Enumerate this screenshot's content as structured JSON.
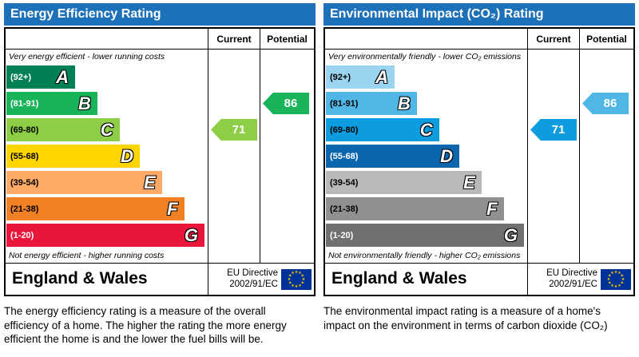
{
  "page": {
    "title_bar_color": "#1d71b8",
    "eu_flag": {
      "background": "#003399",
      "star_color": "#ffcc00"
    }
  },
  "chart_data": [
    {
      "type": "bar",
      "title": "Energy Efficiency Rating",
      "categories": [
        "A (92+)",
        "B (81-91)",
        "C (69-80)",
        "D (55-68)",
        "E (39-54)",
        "F (21-38)",
        "G (1-20)"
      ],
      "band_widths_pct": [
        34,
        45,
        56,
        66,
        77,
        88,
        98
      ],
      "current": 71,
      "current_band": "C",
      "potential": 86,
      "potential_band": "B",
      "legend_position": "columns-right",
      "grid": false
    },
    {
      "type": "bar",
      "title": "Environmental Impact (CO₂) Rating",
      "categories": [
        "A (92+)",
        "B (81-91)",
        "C (69-80)",
        "D (55-68)",
        "E (39-54)",
        "F (21-38)",
        "G (1-20)"
      ],
      "band_widths_pct": [
        34,
        45,
        56,
        66,
        77,
        88,
        98
      ],
      "current": 71,
      "current_band": "C",
      "potential": 86,
      "potential_band": "B",
      "legend_position": "columns-right",
      "grid": false
    }
  ],
  "panels": [
    {
      "id": "energy-efficiency",
      "title": "Energy Efficiency Rating",
      "columns": {
        "current": "Current",
        "potential": "Potential"
      },
      "top_caption": "Very energy efficient - lower running costs",
      "bottom_caption": "Not energy efficient - higher running costs",
      "bands": [
        {
          "range": "(92+)",
          "letter": "A",
          "color": "#008054",
          "width_pct": 34,
          "range_text_color": "#ffffff"
        },
        {
          "range": "(81-91)",
          "letter": "B",
          "color": "#19b459",
          "width_pct": 45,
          "range_text_color": "#ffffff"
        },
        {
          "range": "(69-80)",
          "letter": "C",
          "color": "#8dce46",
          "width_pct": 56,
          "range_text_color": "#000000"
        },
        {
          "range": "(55-68)",
          "letter": "D",
          "color": "#ffd500",
          "width_pct": 66,
          "range_text_color": "#000000"
        },
        {
          "range": "(39-54)",
          "letter": "E",
          "color": "#fcaa65",
          "width_pct": 77,
          "range_text_color": "#000000"
        },
        {
          "range": "(21-38)",
          "letter": "F",
          "color": "#ef8023",
          "width_pct": 88,
          "range_text_color": "#000000"
        },
        {
          "range": "(1-20)",
          "letter": "G",
          "color": "#e9153b",
          "width_pct": 98,
          "range_text_color": "#ffffff"
        }
      ],
      "current": {
        "value": "71",
        "band_index": 2,
        "color": "#8dce46"
      },
      "potential": {
        "value": "86",
        "band_index": 1,
        "color": "#19b459"
      },
      "footer": {
        "region": "England & Wales",
        "directive_line1": "EU Directive",
        "directive_line2": "2002/91/EC"
      },
      "description": "The energy efficiency rating is a measure of the overall efficiency of a home.  The higher the rating the more energy efficient the home is and the lower the fuel bills will be."
    },
    {
      "id": "environmental-impact",
      "title": "Environmental Impact (CO₂) Rating",
      "columns": {
        "current": "Current",
        "potential": "Potential"
      },
      "top_caption": "Very environmentally friendly - lower CO₂ emissions",
      "bottom_caption": "Not environmentally friendly - higher CO₂ emissions",
      "bands": [
        {
          "range": "(92+)",
          "letter": "A",
          "color": "#9bd4f0",
          "width_pct": 34,
          "range_text_color": "#000000"
        },
        {
          "range": "(81-91)",
          "letter": "B",
          "color": "#50b6e6",
          "width_pct": 45,
          "range_text_color": "#000000"
        },
        {
          "range": "(69-80)",
          "letter": "C",
          "color": "#0e9ce0",
          "width_pct": 56,
          "range_text_color": "#000000"
        },
        {
          "range": "(55-68)",
          "letter": "D",
          "color": "#0b66ad",
          "width_pct": 66,
          "range_text_color": "#ffffff"
        },
        {
          "range": "(39-54)",
          "letter": "E",
          "color": "#b7b9bb",
          "width_pct": 77,
          "range_text_color": "#000000"
        },
        {
          "range": "(21-38)",
          "letter": "F",
          "color": "#8f9191",
          "width_pct": 88,
          "range_text_color": "#000000"
        },
        {
          "range": "(1-20)",
          "letter": "G",
          "color": "#6f7170",
          "width_pct": 98,
          "range_text_color": "#ffffff"
        }
      ],
      "current": {
        "value": "71",
        "band_index": 2,
        "color": "#0e9ce0"
      },
      "potential": {
        "value": "86",
        "band_index": 1,
        "color": "#50b6e6"
      },
      "footer": {
        "region": "England & Wales",
        "directive_line1": "EU Directive",
        "directive_line2": "2002/91/EC"
      },
      "description": "The environmental impact rating is a measure of a home's impact on the environment in terms of carbon dioxide (CO₂)"
    }
  ]
}
